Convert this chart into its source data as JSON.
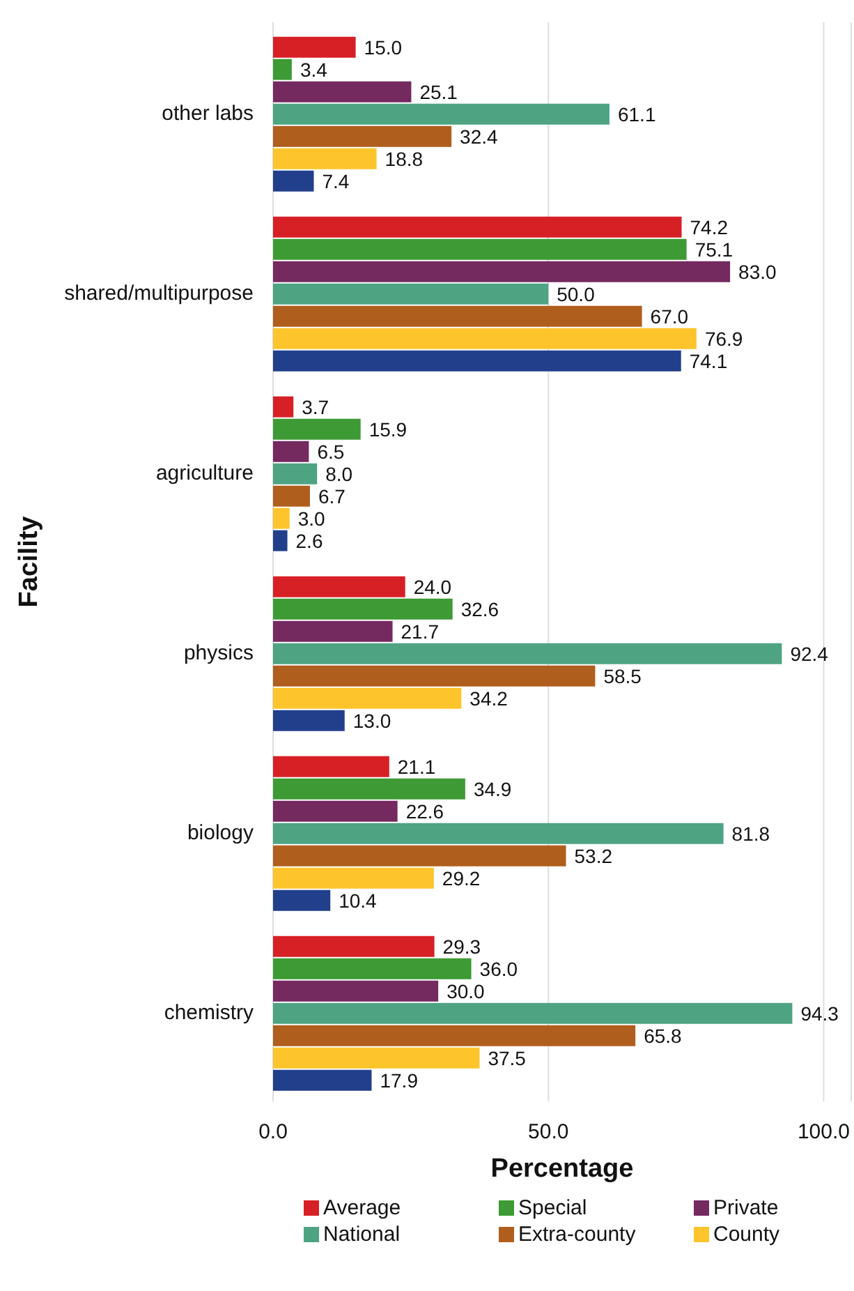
{
  "chart_data": {
    "type": "bar",
    "orientation": "horizontal",
    "xlabel": "Percentage",
    "ylabel": "Facility",
    "categories": [
      "other labs",
      "shared/multipurpose",
      "agriculture",
      "physics",
      "biology",
      "chemistry"
    ],
    "series": [
      {
        "name": "Average",
        "color": "#d71f26",
        "values": [
          15.0,
          74.2,
          3.7,
          24.0,
          21.1,
          29.3
        ],
        "value_labels": [
          "15.0",
          "74.2",
          "3.7",
          "24.0",
          "21.1",
          "29.3"
        ]
      },
      {
        "name": "Special",
        "color": "#3d9a34",
        "values": [
          3.4,
          75.1,
          15.9,
          32.6,
          34.9,
          36.0
        ],
        "value_labels": [
          "3.4",
          "75.1",
          "15.9",
          "32.6",
          "34.9",
          "36.0"
        ]
      },
      {
        "name": "Private",
        "color": "#74295f",
        "values": [
          25.1,
          83.0,
          6.5,
          21.7,
          22.6,
          30.0
        ],
        "value_labels": [
          "25.1",
          "83.0",
          "6.5",
          "21.7",
          "22.6",
          "30.0"
        ]
      },
      {
        "name": "National",
        "color": "#4ea383",
        "values": [
          61.1,
          50.0,
          8.0,
          92.4,
          81.8,
          94.3
        ],
        "value_labels": [
          "61.1",
          "50.0",
          "8.0",
          "92.4",
          "81.8",
          "94.3"
        ]
      },
      {
        "name": "Extra-county",
        "color": "#b05e1d",
        "values": [
          32.4,
          67.0,
          6.7,
          58.5,
          53.2,
          65.8
        ],
        "value_labels": [
          "32.4",
          "67.0",
          "6.7",
          "58.5",
          "53.2",
          "65.8"
        ]
      },
      {
        "name": "County",
        "color": "#fdc52b",
        "values": [
          18.8,
          76.9,
          3.0,
          34.2,
          29.2,
          37.5
        ],
        "value_labels": [
          "18.8",
          "76.9",
          "3.0",
          "34.2",
          "29.2",
          "37.5"
        ]
      },
      {
        "color": "#223f8b",
        "values": [
          7.4,
          74.1,
          2.6,
          13.0,
          10.4,
          17.9
        ],
        "value_labels": [
          "7.4",
          "74.1",
          "2.6",
          "13.0",
          "10.4",
          "17.9"
        ]
      }
    ],
    "xlim": [
      0,
      105
    ],
    "xticks": [
      {
        "value": 0,
        "label": "0.0"
      },
      {
        "value": 50,
        "label": "50.0"
      },
      {
        "value": 100,
        "label": "100.0"
      }
    ],
    "grid": "x",
    "legend": "bottom"
  }
}
